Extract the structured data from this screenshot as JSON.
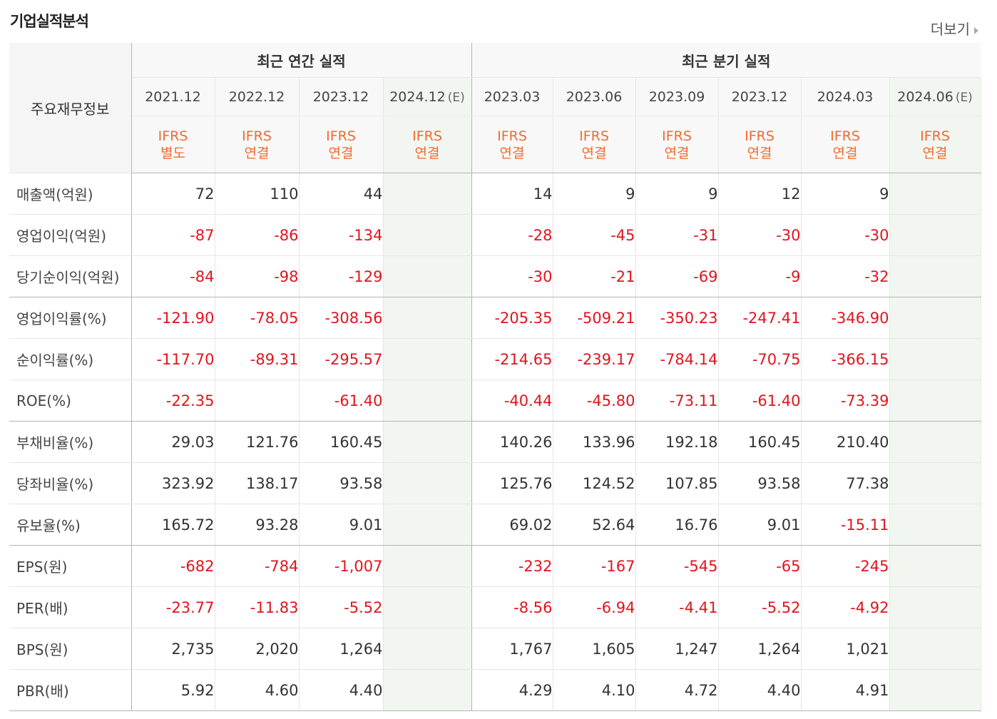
{
  "page": {
    "title": "기업실적분석",
    "more_label": "더보기"
  },
  "table": {
    "label_header": "주요재무정보",
    "groups": {
      "annual": "최근 연간 실적",
      "quarterly": "최근 분기 실적"
    },
    "periods": [
      {
        "label": "2021.12",
        "standard": "IFRS",
        "basis": "별도"
      },
      {
        "label": "2022.12",
        "standard": "IFRS",
        "basis": "연결"
      },
      {
        "label": "2023.12",
        "standard": "IFRS",
        "basis": "연결"
      },
      {
        "label": "2024.12",
        "suffix": "(E)",
        "standard": "IFRS",
        "basis": "연결"
      },
      {
        "label": "2023.03",
        "standard": "IFRS",
        "basis": "연결"
      },
      {
        "label": "2023.06",
        "standard": "IFRS",
        "basis": "연결"
      },
      {
        "label": "2023.09",
        "standard": "IFRS",
        "basis": "연결"
      },
      {
        "label": "2023.12",
        "standard": "IFRS",
        "basis": "연결"
      },
      {
        "label": "2024.03",
        "standard": "IFRS",
        "basis": "연결"
      },
      {
        "label": "2024.06",
        "suffix": "(E)",
        "standard": "IFRS",
        "basis": "연결"
      }
    ],
    "rows": [
      {
        "label": "매출액(억원)",
        "values": [
          "72",
          "110",
          "44",
          "",
          "14",
          "9",
          "9",
          "12",
          "9",
          ""
        ]
      },
      {
        "label": "영업이익(억원)",
        "values": [
          "-87",
          "-86",
          "-134",
          "",
          "-28",
          "-45",
          "-31",
          "-30",
          "-30",
          ""
        ]
      },
      {
        "label": "당기순이익(억원)",
        "values": [
          "-84",
          "-98",
          "-129",
          "",
          "-30",
          "-21",
          "-69",
          "-9",
          "-32",
          ""
        ]
      },
      {
        "label": "영업이익률(%)",
        "values": [
          "-121.90",
          "-78.05",
          "-308.56",
          "",
          "-205.35",
          "-509.21",
          "-350.23",
          "-247.41",
          "-346.90",
          ""
        ]
      },
      {
        "label": "순이익률(%)",
        "values": [
          "-117.70",
          "-89.31",
          "-295.57",
          "",
          "-214.65",
          "-239.17",
          "-784.14",
          "-70.75",
          "-366.15",
          ""
        ]
      },
      {
        "label": "ROE(%)",
        "values": [
          "-22.35",
          "",
          "-61.40",
          "",
          "-40.44",
          "-45.80",
          "-73.11",
          "-61.40",
          "-73.39",
          ""
        ]
      },
      {
        "label": "부채비율(%)",
        "values": [
          "29.03",
          "121.76",
          "160.45",
          "",
          "140.26",
          "133.96",
          "192.18",
          "160.45",
          "210.40",
          ""
        ]
      },
      {
        "label": "당좌비율(%)",
        "values": [
          "323.92",
          "138.17",
          "93.58",
          "",
          "125.76",
          "124.52",
          "107.85",
          "93.58",
          "77.38",
          ""
        ]
      },
      {
        "label": "유보율(%)",
        "values": [
          "165.72",
          "93.28",
          "9.01",
          "",
          "69.02",
          "52.64",
          "16.76",
          "9.01",
          "-15.11",
          ""
        ]
      },
      {
        "label": "EPS(원)",
        "values": [
          "-682",
          "-784",
          "-1,007",
          "",
          "-232",
          "-167",
          "-545",
          "-65",
          "-245",
          ""
        ]
      },
      {
        "label": "PER(배)",
        "values": [
          "-23.77",
          "-11.83",
          "-5.52",
          "",
          "-8.56",
          "-6.94",
          "-4.41",
          "-5.52",
          "-4.92",
          ""
        ]
      },
      {
        "label": "BPS(원)",
        "values": [
          "2,735",
          "2,020",
          "1,264",
          "",
          "1,767",
          "1,605",
          "1,247",
          "1,264",
          "1,021",
          ""
        ]
      },
      {
        "label": "PBR(배)",
        "values": [
          "5.92",
          "4.60",
          "4.40",
          "",
          "4.29",
          "4.10",
          "4.72",
          "4.40",
          "4.91",
          ""
        ]
      }
    ]
  },
  "colors": {
    "negative": "#e0141e",
    "ifrs": "#f26a2e",
    "estimate_bg": "#f1f6f1"
  }
}
